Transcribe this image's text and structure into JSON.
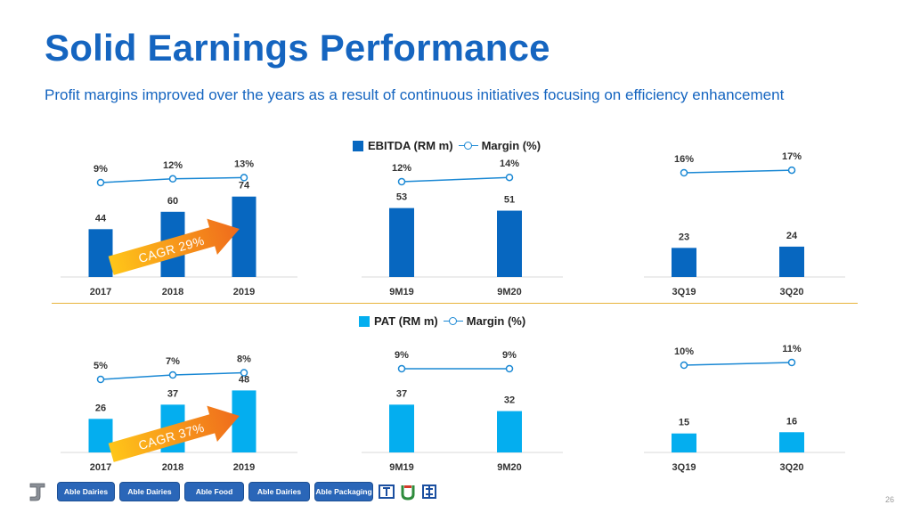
{
  "header": {
    "title": "Solid Earnings Performance",
    "subtitle": "Profit margins improved over the years as a result of continuous initiatives focusing on efficiency enhancement"
  },
  "legends": {
    "ebitda": {
      "bar_label": "EBITDA (RM m)",
      "line_label": "Margin (%)"
    },
    "pat": {
      "bar_label": "PAT (RM m)",
      "line_label": "Margin (%)"
    }
  },
  "colors": {
    "ebitda_bar": "#0767c0",
    "pat_bar": "#04aeef",
    "margin_line": "#1a88d4",
    "title": "#1565c0",
    "divider": "#e8b33a"
  },
  "cagr": {
    "ebitda": "CAGR 29%",
    "pat": "CAGR 37%"
  },
  "chart_data": [
    {
      "type": "bar",
      "group": "ebitda",
      "categories": [
        "2017",
        "2018",
        "2019"
      ],
      "values": [
        44,
        60,
        74
      ],
      "margins": [
        "9%",
        "12%",
        "13%"
      ],
      "margin_values": [
        9,
        12,
        13
      ]
    },
    {
      "type": "bar",
      "group": "ebitda",
      "categories": [
        "9M19",
        "9M20"
      ],
      "values": [
        53,
        51
      ],
      "margins": [
        "12%",
        "14%"
      ],
      "margin_values": [
        12,
        14
      ]
    },
    {
      "type": "bar",
      "group": "ebitda",
      "categories": [
        "3Q19",
        "3Q20"
      ],
      "values": [
        23,
        24
      ],
      "margins": [
        "16%",
        "17%"
      ],
      "margin_values": [
        16,
        17
      ]
    },
    {
      "type": "bar",
      "group": "pat",
      "categories": [
        "2017",
        "2018",
        "2019"
      ],
      "values": [
        26,
        37,
        48
      ],
      "margins": [
        "5%",
        "7%",
        "8%"
      ],
      "margin_values": [
        5,
        7,
        8
      ]
    },
    {
      "type": "bar",
      "group": "pat",
      "categories": [
        "9M19",
        "9M20"
      ],
      "values": [
        37,
        32
      ],
      "margins": [
        "9%",
        "9%"
      ],
      "margin_values": [
        9,
        9
      ]
    },
    {
      "type": "bar",
      "group": "pat",
      "categories": [
        "3Q19",
        "3Q20"
      ],
      "values": [
        15,
        16
      ],
      "margins": [
        "10%",
        "11%"
      ],
      "margin_values": [
        10,
        11
      ]
    }
  ],
  "footer": {
    "brands": [
      "Able Dairies",
      "Able Dairies",
      "Able Food",
      "Able Dairies",
      "Able Packaging"
    ],
    "page_number": "26"
  }
}
